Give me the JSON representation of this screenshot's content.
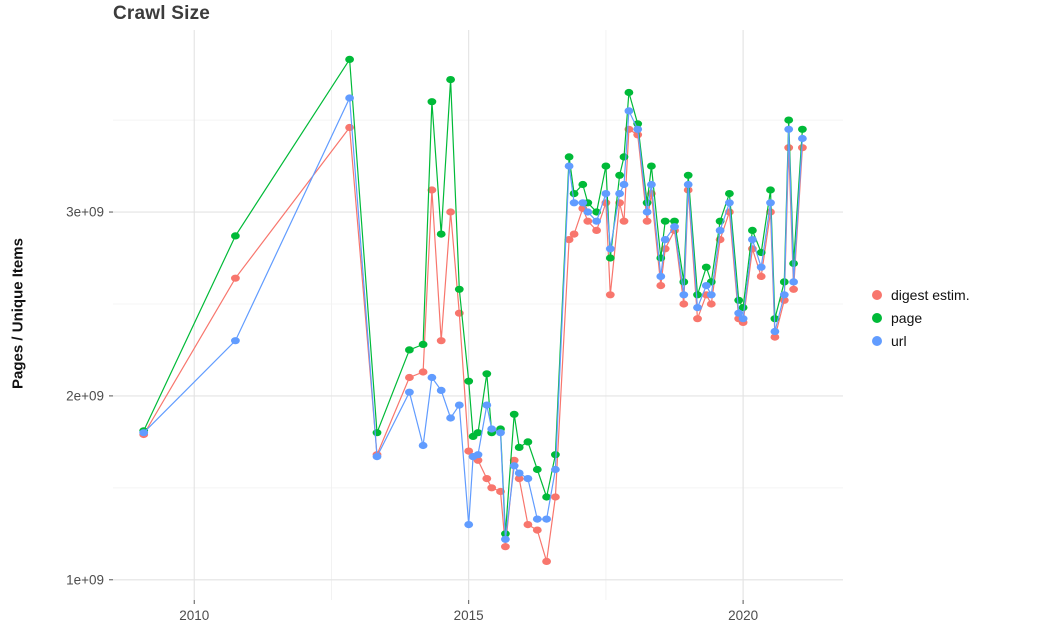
{
  "chart_data": {
    "type": "line",
    "title": "Crawl Size",
    "xlabel": "",
    "ylabel": "Pages / Unique Items",
    "legend_position": "right",
    "grid": "on",
    "grid_major_color": "#e3e3e3",
    "grid_minor_color": "#f0f0f0",
    "tick_label_color": "#4d4d4d",
    "xlim": [
      2008.52,
      2021.82
    ],
    "ylim": [
      890000000.0,
      3990000000.0
    ],
    "xticks": [
      {
        "v": 2010,
        "label": "2010"
      },
      {
        "v": 2015,
        "label": "2015"
      },
      {
        "v": 2020,
        "label": "2020"
      }
    ],
    "x_minor": [
      2012.5,
      2017.5
    ],
    "yticks": [
      {
        "v": 1000000000.0,
        "label": "1e+09"
      },
      {
        "v": 2000000000.0,
        "label": "2e+09"
      },
      {
        "v": 3000000000.0,
        "label": "3e+09"
      }
    ],
    "y_minor": [
      1500000000.0,
      2500000000.0,
      3500000000.0
    ],
    "x": [
      2009.08,
      2010.75,
      2012.83,
      2013.33,
      2013.92,
      2014.17,
      2014.33,
      2014.5,
      2014.67,
      2014.83,
      2015.0,
      2015.08,
      2015.17,
      2015.33,
      2015.42,
      2015.58,
      2015.67,
      2015.83,
      2015.92,
      2016.08,
      2016.25,
      2016.42,
      2016.58,
      2016.83,
      2016.92,
      2017.08,
      2017.17,
      2017.33,
      2017.5,
      2017.58,
      2017.75,
      2017.83,
      2017.92,
      2018.08,
      2018.25,
      2018.33,
      2018.5,
      2018.58,
      2018.75,
      2018.92,
      2019.0,
      2019.17,
      2019.33,
      2019.42,
      2019.58,
      2019.75,
      2019.92,
      2020.0,
      2020.17,
      2020.33,
      2020.5,
      2020.58,
      2020.75,
      2020.83,
      2020.92,
      2021.08
    ],
    "series": [
      {
        "name": "digest estim.",
        "color": "#F8766D",
        "values": [
          1790000000.0,
          2640000000.0,
          3460000000.0,
          1680000000.0,
          2100000000.0,
          2130000000.0,
          3120000000.0,
          2300000000.0,
          3000000000.0,
          2450000000.0,
          1700000000.0,
          1670000000.0,
          1650000000.0,
          1550000000.0,
          1500000000.0,
          1480000000.0,
          1180000000.0,
          1650000000.0,
          1550000000.0,
          1300000000.0,
          1270000000.0,
          1100000000.0,
          1450000000.0,
          2850000000.0,
          2880000000.0,
          3020000000.0,
          2950000000.0,
          2900000000.0,
          3050000000.0,
          2550000000.0,
          3050000000.0,
          2950000000.0,
          3450000000.0,
          3420000000.0,
          2950000000.0,
          3100000000.0,
          2600000000.0,
          2800000000.0,
          2900000000.0,
          2500000000.0,
          3120000000.0,
          2420000000.0,
          2550000000.0,
          2500000000.0,
          2850000000.0,
          3000000000.0,
          2420000000.0,
          2400000000.0,
          2800000000.0,
          2650000000.0,
          3000000000.0,
          2320000000.0,
          2520000000.0,
          3350000000.0,
          2580000000.0,
          3350000000.0
        ]
      },
      {
        "name": "page",
        "color": "#00BA38",
        "values": [
          1810000000.0,
          2870000000.0,
          3830000000.0,
          1800000000.0,
          2250000000.0,
          2280000000.0,
          3600000000.0,
          2880000000.0,
          3720000000.0,
          2580000000.0,
          2080000000.0,
          1780000000.0,
          1800000000.0,
          2120000000.0,
          1800000000.0,
          1820000000.0,
          1250000000.0,
          1900000000.0,
          1720000000.0,
          1750000000.0,
          1600000000.0,
          1450000000.0,
          1680000000.0,
          3300000000.0,
          3100000000.0,
          3150000000.0,
          3050000000.0,
          3000000000.0,
          3250000000.0,
          2750000000.0,
          3200000000.0,
          3300000000.0,
          3650000000.0,
          3480000000.0,
          3050000000.0,
          3250000000.0,
          2750000000.0,
          2950000000.0,
          2950000000.0,
          2620000000.0,
          3200000000.0,
          2550000000.0,
          2700000000.0,
          2620000000.0,
          2950000000.0,
          3100000000.0,
          2520000000.0,
          2480000000.0,
          2900000000.0,
          2780000000.0,
          3120000000.0,
          2420000000.0,
          2620000000.0,
          3500000000.0,
          2720000000.0,
          3450000000.0
        ]
      },
      {
        "name": "url",
        "color": "#619CFF",
        "values": [
          1800000000.0,
          2300000000.0,
          3620000000.0,
          1670000000.0,
          2020000000.0,
          1730000000.0,
          2100000000.0,
          2030000000.0,
          1880000000.0,
          1950000000.0,
          1300000000.0,
          1670000000.0,
          1680000000.0,
          1950000000.0,
          1820000000.0,
          1800000000.0,
          1220000000.0,
          1620000000.0,
          1580000000.0,
          1550000000.0,
          1330000000.0,
          1330000000.0,
          1600000000.0,
          3250000000.0,
          3050000000.0,
          3050000000.0,
          3000000000.0,
          2950000000.0,
          3100000000.0,
          2800000000.0,
          3100000000.0,
          3150000000.0,
          3550000000.0,
          3450000000.0,
          3000000000.0,
          3150000000.0,
          2650000000.0,
          2850000000.0,
          2920000000.0,
          2550000000.0,
          3150000000.0,
          2480000000.0,
          2600000000.0,
          2550000000.0,
          2900000000.0,
          3050000000.0,
          2450000000.0,
          2420000000.0,
          2850000000.0,
          2700000000.0,
          3050000000.0,
          2350000000.0,
          2550000000.0,
          3450000000.0,
          2620000000.0,
          3400000000.0
        ]
      }
    ]
  }
}
